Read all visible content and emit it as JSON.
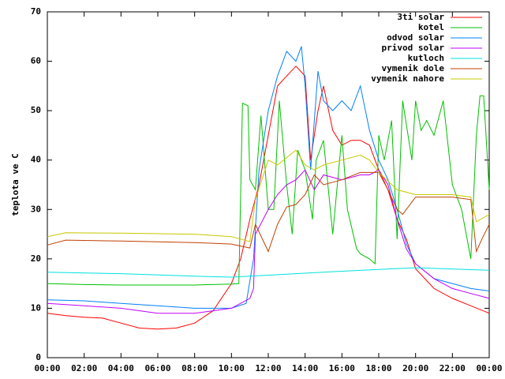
{
  "chart_data": {
    "type": "line",
    "ylabel": "teplota ve C",
    "xlim": [
      0,
      24
    ],
    "xticks": [
      {
        "value": 0,
        "label": "00:00"
      },
      {
        "value": 2,
        "label": "02:00"
      },
      {
        "value": 4,
        "label": "04:00"
      },
      {
        "value": 6,
        "label": "06:00"
      },
      {
        "value": 8,
        "label": "08:00"
      },
      {
        "value": 10,
        "label": "10:00"
      },
      {
        "value": 12,
        "label": "12:00"
      },
      {
        "value": 14,
        "label": "14:00"
      },
      {
        "value": 16,
        "label": "16:00"
      },
      {
        "value": 18,
        "label": "18:00"
      },
      {
        "value": 20,
        "label": "20:00"
      },
      {
        "value": 22,
        "label": "22:00"
      },
      {
        "value": 24,
        "label": "00:00"
      }
    ],
    "ylim": [
      0,
      70
    ],
    "yticks": [
      0,
      10,
      20,
      30,
      40,
      50,
      60,
      70
    ],
    "legend": "top-right",
    "series": [
      {
        "name": "3ti solar",
        "color": "#ff0000",
        "x": [
          0,
          1,
          2,
          3,
          4,
          5,
          6,
          7,
          8,
          9,
          10,
          10.5,
          11,
          11.5,
          12,
          12.5,
          13,
          13.5,
          14,
          14.3,
          14.7,
          15,
          15.5,
          16,
          16.5,
          17,
          17.5,
          18,
          18.5,
          19,
          19.5,
          20,
          21,
          22,
          23,
          24
        ],
        "values": [
          9,
          8.5,
          8.2,
          8,
          7,
          6,
          5.8,
          6,
          7,
          9.5,
          15,
          20,
          28,
          35,
          45,
          55,
          57,
          59,
          57,
          40,
          50,
          55,
          46,
          43,
          44,
          44,
          43,
          38,
          34,
          28,
          24,
          18,
          14,
          12,
          10.5,
          9
        ]
      },
      {
        "name": "kotel",
        "color": "#00c000",
        "x": [
          0,
          2,
          4,
          6,
          8,
          10,
          10.4,
          10.6,
          10.9,
          11,
          11.3,
          11.6,
          12,
          12.3,
          12.6,
          13,
          13.3,
          13.6,
          14,
          14.4,
          14.6,
          15,
          15.5,
          16,
          16.3,
          16.8,
          17,
          17.5,
          17.8,
          18,
          18.3,
          18.7,
          19,
          19.3,
          19.8,
          20,
          20.3,
          20.6,
          21,
          21.5,
          22,
          22.5,
          23,
          23.3,
          23.5,
          23.7,
          24
        ],
        "values": [
          15,
          14.8,
          14.7,
          14.7,
          14.7,
          14.9,
          15,
          51.5,
          51,
          36,
          34,
          49,
          30,
          30,
          52,
          35,
          25,
          42,
          38,
          28,
          40,
          44,
          25,
          45,
          30,
          22,
          21,
          20,
          19,
          45,
          40,
          48,
          24,
          52,
          40,
          52,
          46,
          48,
          45,
          52,
          35,
          30,
          20,
          45,
          53,
          53,
          34
        ]
      },
      {
        "name": "odvod solar",
        "color": "#0080ff",
        "x": [
          0,
          2,
          4,
          6,
          8,
          10,
          10.8,
          11.2,
          11.5,
          12,
          12.5,
          13,
          13.5,
          13.8,
          14,
          14.3,
          14.7,
          15,
          15.5,
          16,
          16.5,
          17,
          17.5,
          18,
          18.5,
          19,
          19.5,
          20,
          21,
          22,
          23,
          24
        ],
        "values": [
          11.7,
          11.5,
          11,
          10.5,
          10,
          10,
          11,
          20,
          38,
          50,
          57,
          62,
          60,
          63,
          55,
          38,
          58,
          52,
          50,
          52,
          50,
          55,
          46,
          40,
          36,
          30,
          23,
          19,
          16,
          15,
          14,
          13.5
        ]
      },
      {
        "name": "privod solar",
        "color": "#c000ff",
        "x": [
          0,
          2,
          4,
          6,
          8,
          9,
          10,
          11,
          11.2,
          11.3,
          12,
          12.5,
          13,
          13.5,
          14,
          14.5,
          15,
          16,
          17,
          17.5,
          18,
          18.5,
          19,
          19.5,
          20,
          21,
          22,
          23,
          24
        ],
        "values": [
          11,
          10.5,
          10,
          9,
          9,
          9.5,
          10,
          12,
          14,
          25,
          30,
          33,
          35,
          36,
          38,
          34,
          37,
          36,
          37,
          37,
          38,
          35,
          28,
          22,
          19,
          16,
          14,
          13,
          12
        ]
      },
      {
        "name": "kutloch",
        "color": "#00e0e0",
        "x": [
          0,
          4,
          8,
          10,
          12,
          16,
          20,
          24
        ],
        "values": [
          17.3,
          17,
          16.5,
          16.3,
          16.7,
          17.5,
          18.2,
          17.7
        ]
      },
      {
        "name": "vymenik dole",
        "color": "#c04000",
        "x": [
          0,
          1,
          4,
          8,
          10,
          11,
          11.3,
          12,
          12.5,
          13,
          13.5,
          14,
          14.5,
          15,
          16,
          17,
          18,
          18.5,
          19,
          19.3,
          20,
          22,
          23,
          23.3,
          23.6,
          24
        ],
        "values": [
          22.8,
          23.8,
          23.6,
          23.3,
          23,
          22.2,
          27,
          21.5,
          27,
          30.5,
          31,
          33,
          37,
          35,
          36,
          37.5,
          37.5,
          34,
          30,
          29,
          32.5,
          32.5,
          32,
          21.5,
          24,
          27
        ]
      },
      {
        "name": "vymenik nahore",
        "color": "#c8c800",
        "x": [
          0,
          1,
          4,
          8,
          10,
          11,
          11.3,
          12,
          12.5,
          13,
          13.5,
          14,
          14.5,
          15,
          16,
          17,
          17.5,
          18,
          19,
          20,
          22,
          23,
          23.3,
          24
        ],
        "values": [
          24.5,
          25.3,
          25.2,
          25,
          24.5,
          23.5,
          32,
          40,
          39,
          40.5,
          42,
          39,
          38,
          39,
          40,
          41,
          40,
          37.5,
          34,
          33,
          33,
          32.5,
          27.5,
          29
        ]
      }
    ]
  }
}
